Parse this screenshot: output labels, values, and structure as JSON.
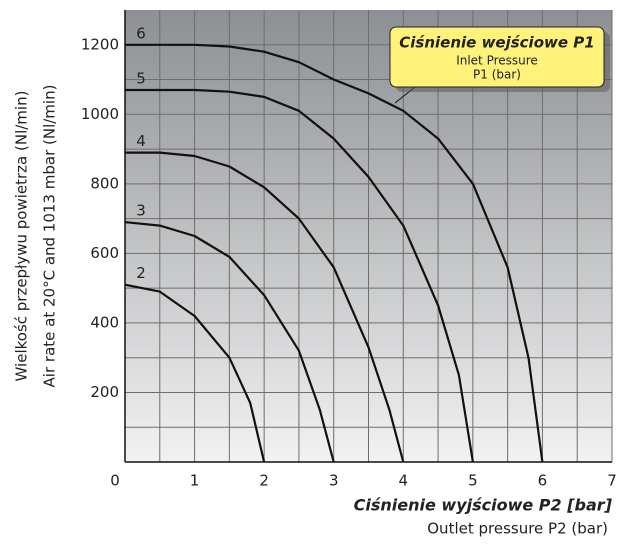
{
  "chart_data": {
    "type": "line",
    "ylabel": [
      "Wielkość przepływu powietrza (Nl/min)",
      "Air rate at 20°C and 1013 mbar (Nl/min)"
    ],
    "xlabel": "Ciśnienie wyjściowe  P2 [bar]",
    "xlabel_sub": "Outlet pressure P2 (bar)",
    "annotation": {
      "title": "Ciśnienie wejściowe P1",
      "lines": [
        "Inlet Pressure",
        "P1 (bar)"
      ]
    },
    "xlim": [
      0,
      7
    ],
    "ylim": [
      0,
      1300
    ],
    "xticks": [
      0,
      1,
      2,
      3,
      4,
      5,
      6,
      7
    ],
    "yticks": [
      200,
      400,
      600,
      800,
      1000,
      1200
    ],
    "xminorticks": [
      0.5,
      1.5,
      2.5,
      3.5,
      4.5,
      5.5,
      6.5
    ],
    "yminorticks": [
      100,
      300,
      500,
      700,
      900,
      1100
    ],
    "grid": true,
    "color": "#111111",
    "series": [
      {
        "name": "2",
        "x": [
          0,
          0.5,
          1,
          1.5,
          1.8,
          2
        ],
        "values": [
          510,
          490,
          420,
          300,
          170,
          0
        ]
      },
      {
        "name": "3",
        "x": [
          0,
          0.5,
          1,
          1.5,
          2,
          2.5,
          2.8,
          3
        ],
        "values": [
          690,
          680,
          650,
          590,
          480,
          320,
          150,
          0
        ]
      },
      {
        "name": "4",
        "x": [
          0,
          0.5,
          1,
          1.5,
          2,
          2.5,
          3,
          3.5,
          3.8,
          4
        ],
        "values": [
          890,
          890,
          880,
          850,
          790,
          700,
          560,
          330,
          150,
          0
        ]
      },
      {
        "name": "5",
        "x": [
          0,
          0.5,
          1,
          1.5,
          2,
          2.5,
          3,
          3.5,
          4,
          4.5,
          4.8,
          5
        ],
        "values": [
          1070,
          1070,
          1070,
          1065,
          1050,
          1010,
          930,
          820,
          680,
          450,
          250,
          0
        ]
      },
      {
        "name": "6",
        "x": [
          0,
          0.5,
          1,
          1.5,
          2,
          2.5,
          3,
          3.5,
          4,
          4.5,
          5,
          5.5,
          5.8,
          6
        ],
        "values": [
          1200,
          1200,
          1200,
          1195,
          1180,
          1150,
          1100,
          1060,
          1010,
          930,
          800,
          560,
          300,
          0
        ]
      }
    ]
  }
}
